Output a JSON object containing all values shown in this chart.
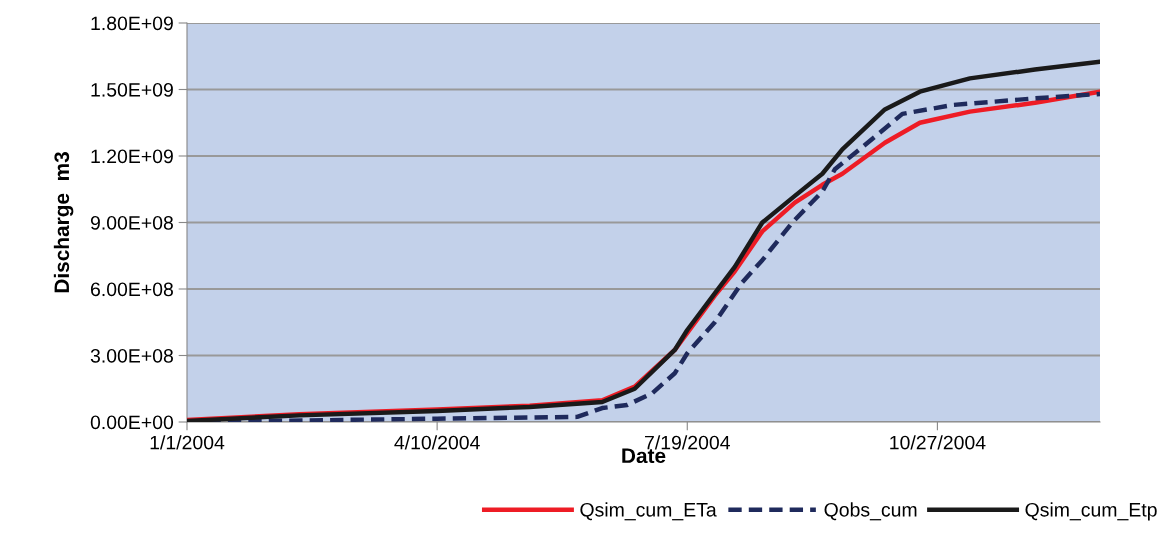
{
  "chart_data": {
    "type": "line",
    "xlabel": "Date",
    "ylabel": "Discharge  m3",
    "xlim": [
      "2004-01-01",
      "2004-12-31"
    ],
    "xticks": [
      {
        "value": "2004-01-01",
        "label": "1/1/2004"
      },
      {
        "value": "2004-04-10",
        "label": "4/10/2004"
      },
      {
        "value": "2004-07-19",
        "label": "7/19/2004"
      },
      {
        "value": "2004-10-27",
        "label": "10/27/2004"
      }
    ],
    "ylim": [
      0,
      1800000000
    ],
    "yticks": [
      {
        "value": 0,
        "label": "0.00E+00"
      },
      {
        "value": 300000000,
        "label": "3.00E+08"
      },
      {
        "value": 600000000,
        "label": "6.00E+08"
      },
      {
        "value": 900000000,
        "label": "9.00E+08"
      },
      {
        "value": 1200000000,
        "label": "1.20E+09"
      },
      {
        "value": 1500000000,
        "label": "1.50E+09"
      },
      {
        "value": 1800000000,
        "label": "1.80E+09"
      }
    ],
    "grid": "y",
    "legend": "bottom right",
    "series": [
      {
        "name": "Qsim_cum_ETa",
        "color": "#ee1c25",
        "line_style": "solid",
        "x": [
          "2004-01-01",
          "2004-02-15",
          "2004-04-10",
          "2004-05-17",
          "2004-06-15",
          "2004-06-28",
          "2004-07-14",
          "2004-07-30",
          "2004-08-07",
          "2004-08-18",
          "2004-08-31",
          "2004-09-11",
          "2004-09-19",
          "2004-10-06",
          "2004-10-20",
          "2004-11-09",
          "2004-12-05",
          "2004-12-31"
        ],
        "values": [
          9000000,
          35000000,
          56000000,
          74000000,
          98000000,
          160000000,
          325000000,
          570000000,
          680000000,
          860000000,
          990000000,
          1070000000,
          1120000000,
          1260000000,
          1350000000,
          1400000000,
          1440000000,
          1490000000
        ]
      },
      {
        "name": "Qobs_cum",
        "color": "#1f2a5c",
        "line_style": "dashed",
        "x": [
          "2004-01-01",
          "2004-04-10",
          "2004-05-17",
          "2004-06-05",
          "2004-06-15",
          "2004-06-25",
          "2004-07-05",
          "2004-07-14",
          "2004-07-19",
          "2004-07-30",
          "2004-08-10",
          "2004-08-18",
          "2004-08-30",
          "2004-09-11",
          "2004-09-16",
          "2004-09-27",
          "2004-10-13",
          "2004-11-02",
          "2004-12-05",
          "2004-12-31"
        ],
        "values": [
          0,
          15000000,
          20000000,
          23000000,
          63000000,
          77000000,
          130000000,
          220000000,
          310000000,
          450000000,
          630000000,
          730000000,
          900000000,
          1040000000,
          1140000000,
          1240000000,
          1390000000,
          1430000000,
          1460000000,
          1480000000
        ]
      },
      {
        "name": "Qsim_cum_Etp",
        "color": "#1a1a1a",
        "line_style": "solid",
        "x": [
          "2004-01-01",
          "2004-02-15",
          "2004-04-10",
          "2004-05-17",
          "2004-06-15",
          "2004-06-28",
          "2004-07-14",
          "2004-07-19",
          "2004-07-30",
          "2004-08-07",
          "2004-08-18",
          "2004-08-31",
          "2004-09-11",
          "2004-09-19",
          "2004-10-06",
          "2004-10-20",
          "2004-11-09",
          "2004-12-05",
          "2004-12-31"
        ],
        "values": [
          5000000,
          30000000,
          50000000,
          68000000,
          90000000,
          150000000,
          325000000,
          415000000,
          580000000,
          700000000,
          900000000,
          1020000000,
          1120000000,
          1230000000,
          1410000000,
          1490000000,
          1550000000,
          1590000000,
          1625000000
        ]
      }
    ]
  }
}
